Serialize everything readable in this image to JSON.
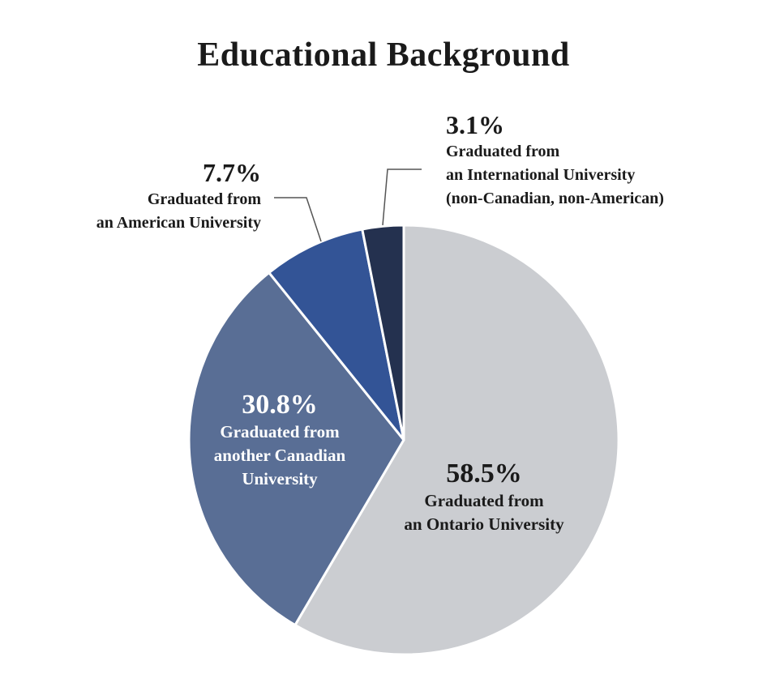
{
  "chart_data": {
    "type": "pie",
    "title": "Educational Background",
    "start_angle_deg": 0,
    "direction": "clockwise",
    "slices": [
      {
        "value": 58.5,
        "pct_label": "58.5%",
        "label_lines": [
          "Graduated from",
          "an Ontario University"
        ],
        "color": "#cbcdd1",
        "text_color": "#1a1a1a",
        "label_position": "inside"
      },
      {
        "value": 30.8,
        "pct_label": "30.8%",
        "label_lines": [
          "Graduated from",
          "another Canadian",
          "University"
        ],
        "color": "#596e95",
        "text_color": "#ffffff",
        "label_position": "inside"
      },
      {
        "value": 7.7,
        "pct_label": "7.7%",
        "label_lines": [
          "Graduated from",
          "an American University"
        ],
        "color": "#335496",
        "text_color": "#1a1a1a",
        "label_position": "outside-left"
      },
      {
        "value": 3.1,
        "pct_label": "3.1%",
        "label_lines": [
          "Graduated from",
          "an International University",
          "(non-Canadian, non-American)"
        ],
        "color": "#24314f",
        "text_color": "#1a1a1a",
        "label_position": "outside-right"
      }
    ]
  }
}
